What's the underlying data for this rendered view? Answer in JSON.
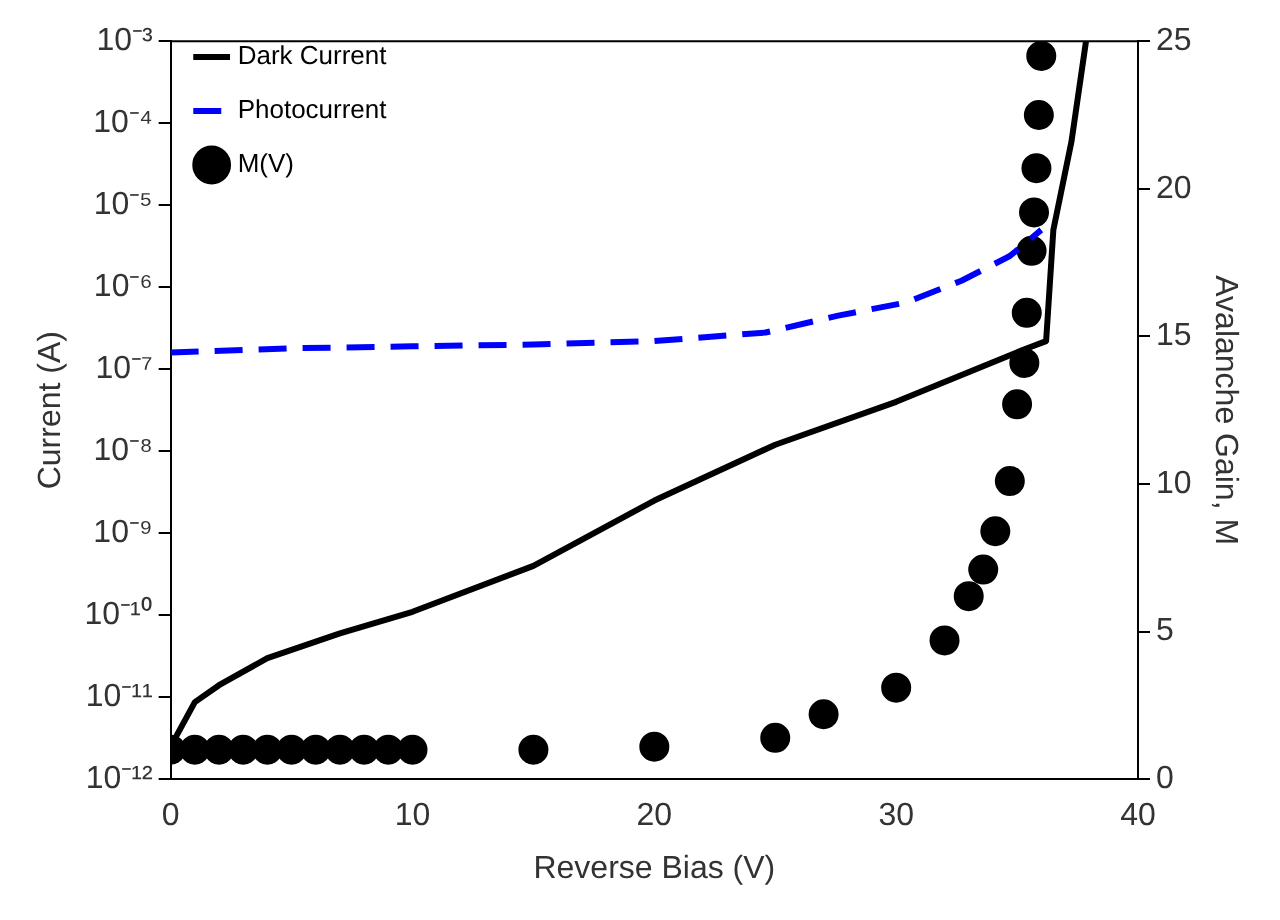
{
  "chart_data": {
    "type": "line",
    "xlabel": "Reverse Bias (V)",
    "ylabel": "Current (A)",
    "y2label": "Avalanche Gain, M",
    "xlim": [
      0,
      40
    ],
    "xticks": [
      0,
      10,
      20,
      30,
      40
    ],
    "ylim": [
      1e-12,
      0.001
    ],
    "yticks": [
      {
        "value": 1e-12,
        "label": "10⁻¹²"
      },
      {
        "value": 1e-11,
        "label": "10⁻¹¹"
      },
      {
        "value": 1e-10,
        "label": "10⁻¹⁰"
      },
      {
        "value": 1e-09,
        "label": "10⁻⁹"
      },
      {
        "value": 1e-08,
        "label": "10⁻⁸"
      },
      {
        "value": 1e-07,
        "label": "10⁻⁷"
      },
      {
        "value": 1e-06,
        "label": "10⁻⁶"
      },
      {
        "value": 1e-05,
        "label": "10⁻⁵"
      },
      {
        "value": 0.0001,
        "label": "10⁻⁴"
      },
      {
        "value": 0.001,
        "label": "10⁻³"
      }
    ],
    "y2lim": [
      0,
      25
    ],
    "y2ticks": [
      0,
      5,
      10,
      15,
      20,
      25
    ],
    "log": "y",
    "grid": false,
    "legend": "top left",
    "series": [
      {
        "name": "Dark Current",
        "color": "#000000",
        "line_style": "solid",
        "marker": "none",
        "x": [
          0,
          1,
          2,
          4,
          7,
          10,
          15,
          20,
          25,
          30,
          35.2,
          36.2,
          36.5,
          37.25,
          37.85
        ],
        "values": [
          2.5e-12,
          8.7e-12,
          1.4e-11,
          3e-11,
          6e-11,
          1.1e-10,
          4e-10,
          2.5e-09,
          1.2e-08,
          4e-08,
          1.7e-07,
          2.2e-07,
          5e-06,
          6e-05,
          0.001
        ]
      },
      {
        "name": "Photocurrent",
        "color": "#0000ff",
        "line_style": "dashed",
        "marker": "none",
        "x": [
          0,
          5,
          10,
          15,
          20,
          24.6,
          27.6,
          30.4,
          32.7,
          34.7,
          36
        ],
        "values": [
          1.6e-07,
          1.8e-07,
          1.9e-07,
          2e-07,
          2.2e-07,
          2.8e-07,
          4.5e-07,
          6.5e-07,
          1.2e-06,
          2.4e-06,
          5e-06
        ]
      },
      {
        "name": "M(V)",
        "type": "scatter",
        "color": "#000000",
        "marker": "circle",
        "axis": "y2",
        "x": [
          0,
          1,
          2,
          3,
          4,
          5,
          6,
          7,
          8,
          9,
          10,
          15,
          20,
          25,
          27,
          30,
          32,
          33,
          33.6,
          34.1,
          34.7,
          35,
          35.3,
          35.4,
          35.6,
          35.7,
          35.8,
          35.9,
          36
        ],
        "values": [
          1,
          1,
          1,
          1,
          1,
          1,
          1,
          1,
          1,
          1,
          1,
          1,
          1.1,
          1.4,
          2.2,
          3.1,
          4.7,
          6.2,
          7.1,
          8.4,
          10.1,
          12.7,
          14.1,
          15.8,
          17.9,
          19.2,
          20.7,
          22.5,
          24.5
        ]
      }
    ]
  }
}
